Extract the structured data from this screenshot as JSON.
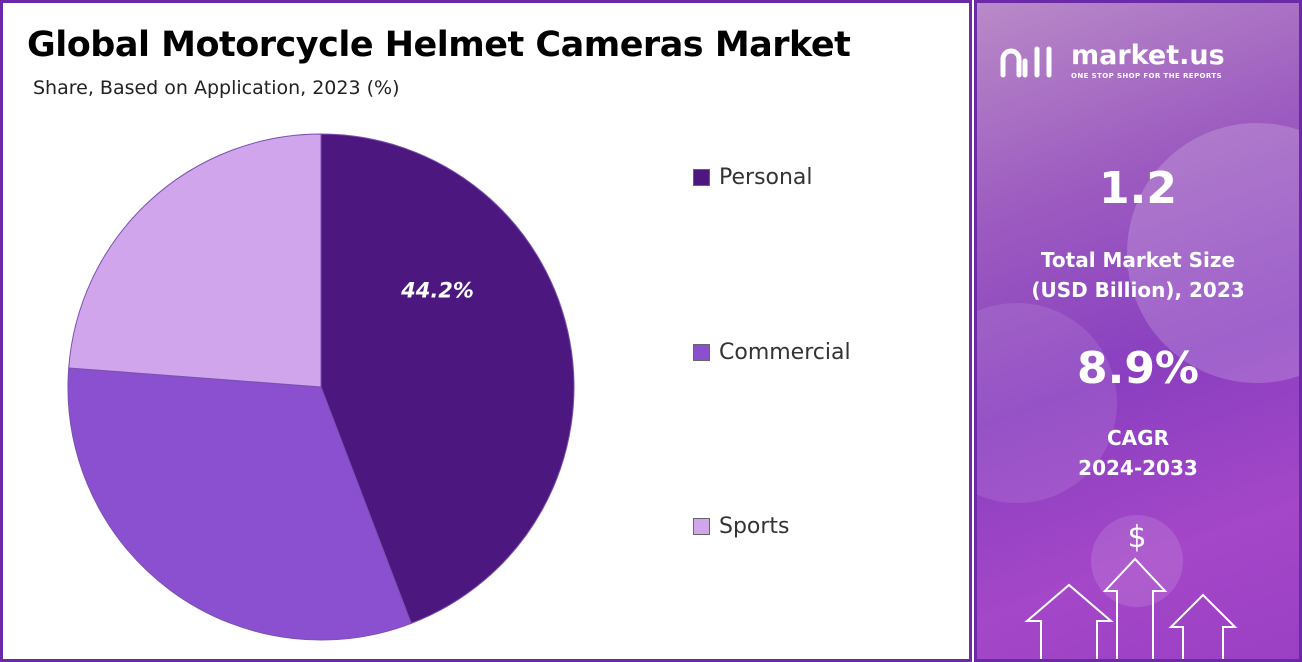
{
  "header": {
    "title": "Global Motorcycle Helmet Cameras Market",
    "subtitle": "Share, Based on Application, 2023 (%)"
  },
  "chart_data": {
    "type": "pie",
    "categories": [
      "Personal",
      "Commercial",
      "Sports"
    ],
    "values": [
      44.2,
      32.0,
      23.8
    ],
    "data_labels": [
      "44.2%",
      "",
      ""
    ],
    "colors": [
      "#4c1880",
      "#8a50d0",
      "#d0a5ec"
    ],
    "legend_position": "right"
  },
  "brand": {
    "name": "market.us",
    "tagline": "ONE STOP SHOP FOR THE REPORTS"
  },
  "stats": {
    "market_size_value": "1.2",
    "market_size_label_line1": "Total Market Size",
    "market_size_label_line2": "(USD Billion), 2023",
    "cagr_value": "8.9%",
    "cagr_label_line1": "CAGR",
    "cagr_label_line2": "2024-2033"
  },
  "icons": [
    "dollar-icon",
    "up-arrow-icon"
  ],
  "colors": {
    "accent": "#6a2aa8",
    "panel_purple": "#9b3fc4"
  }
}
